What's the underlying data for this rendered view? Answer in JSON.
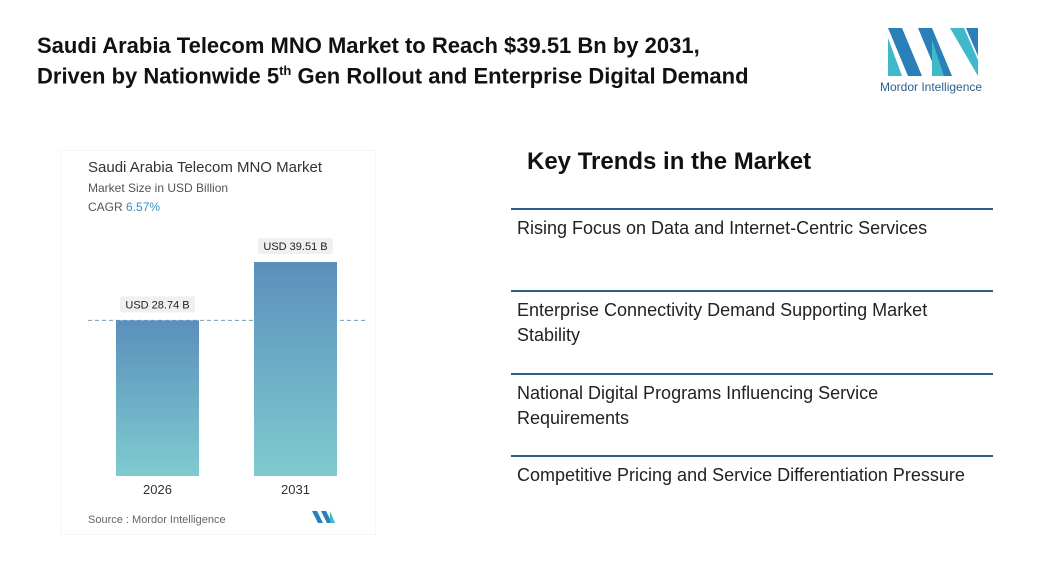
{
  "header": {
    "title_line1": "Saudi Arabia Telecom MNO Market to Reach $39.51 Bn by 2031,",
    "title_line2_pre": "Driven by Nationwide 5",
    "title_line2_sup": "th",
    "title_line2_post": " Gen Rollout and Enterprise Digital Demand",
    "logo_text": "Mordor Intelligence"
  },
  "chart_data": {
    "type": "bar",
    "title": "Saudi Arabia Telecom MNO Market",
    "subtitle": "Market Size in USD Billion",
    "cagr_label": "CAGR",
    "cagr": "6.57%",
    "categories": [
      "2026",
      "2031"
    ],
    "values": [
      28.74,
      39.51
    ],
    "value_labels": [
      "USD 28.74 B",
      "USD 39.51 B"
    ],
    "source_label": "Source :",
    "source": "Mordor Intelligence"
  },
  "trends": {
    "heading": "Key Trends in the Market",
    "items": [
      "Rising Focus on Data and Internet-Centric Services",
      "Enterprise Connectivity Demand Supporting Market Stability",
      "National Digital Programs Influencing Service Requirements",
      "Competitive Pricing and Service Differentiation Pressure"
    ]
  }
}
